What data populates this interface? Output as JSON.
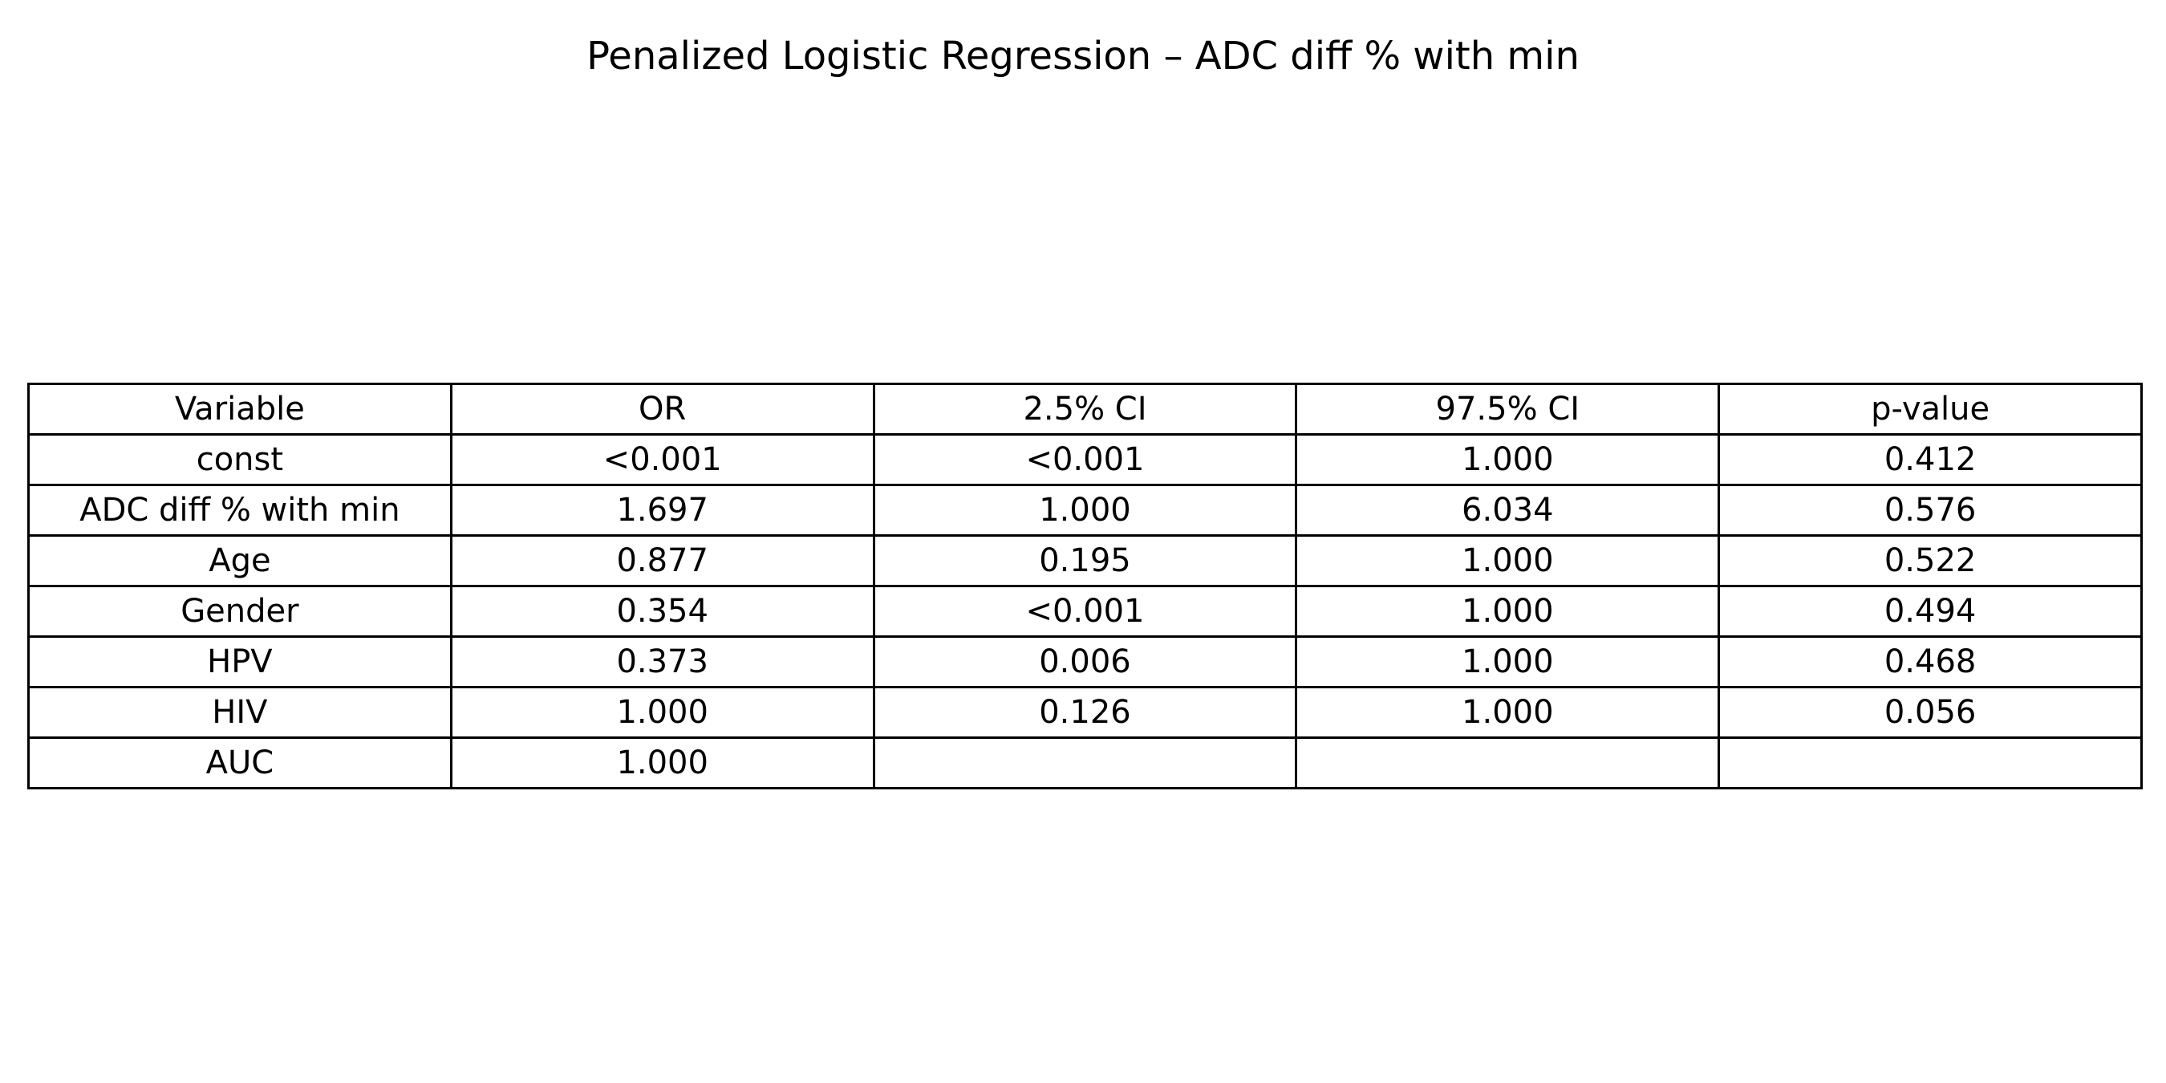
{
  "chart_data": {
    "type": "table",
    "title": "Penalized Logistic Regression – ADC diff % with min",
    "columns": [
      "Variable",
      "OR",
      "2.5% CI",
      "97.5% CI",
      "p-value"
    ],
    "rows": [
      [
        "const",
        "<0.001",
        "<0.001",
        "1.000",
        "0.412"
      ],
      [
        "ADC diff % with min",
        "1.697",
        "1.000",
        "6.034",
        "0.576"
      ],
      [
        "Age",
        "0.877",
        "0.195",
        "1.000",
        "0.522"
      ],
      [
        "Gender",
        "0.354",
        "<0.001",
        "1.000",
        "0.494"
      ],
      [
        "HPV",
        "0.373",
        "0.006",
        "1.000",
        "0.468"
      ],
      [
        "HIV",
        "1.000",
        "0.126",
        "1.000",
        "0.056"
      ],
      [
        "AUC",
        "1.000",
        "",
        "",
        ""
      ]
    ]
  }
}
